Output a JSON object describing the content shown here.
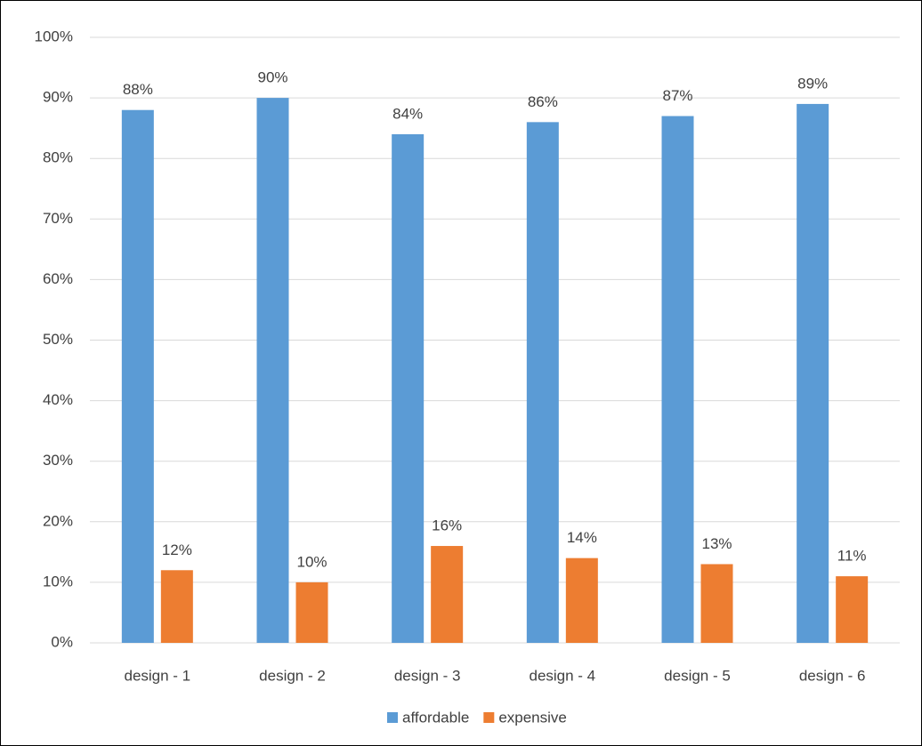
{
  "chart_data": {
    "type": "bar",
    "categories": [
      "design - 1",
      "design - 2",
      "design - 3",
      "design - 4",
      "design - 5",
      "design - 6"
    ],
    "series": [
      {
        "name": "affordable",
        "color": "#5b9bd5",
        "values": [
          88,
          90,
          84,
          86,
          87,
          89
        ],
        "value_labels": [
          "88%",
          "90%",
          "84%",
          "86%",
          "87%",
          "89%"
        ]
      },
      {
        "name": "expensive",
        "color": "#ed7d31",
        "values": [
          12,
          10,
          16,
          14,
          13,
          11
        ],
        "value_labels": [
          "12%",
          "10%",
          "16%",
          "14%",
          "13%",
          "11%"
        ]
      }
    ],
    "ylim": [
      0,
      100
    ],
    "yticks": [
      {
        "value": 0,
        "label": "0%"
      },
      {
        "value": 10,
        "label": "10%"
      },
      {
        "value": 20,
        "label": "20%"
      },
      {
        "value": 30,
        "label": "30%"
      },
      {
        "value": 40,
        "label": "40%"
      },
      {
        "value": 50,
        "label": "50%"
      },
      {
        "value": 60,
        "label": "60%"
      },
      {
        "value": 70,
        "label": "70%"
      },
      {
        "value": 80,
        "label": "80%"
      },
      {
        "value": 90,
        "label": "90%"
      },
      {
        "value": 100,
        "label": "100%"
      }
    ],
    "grid": true,
    "legend": "bottom"
  }
}
